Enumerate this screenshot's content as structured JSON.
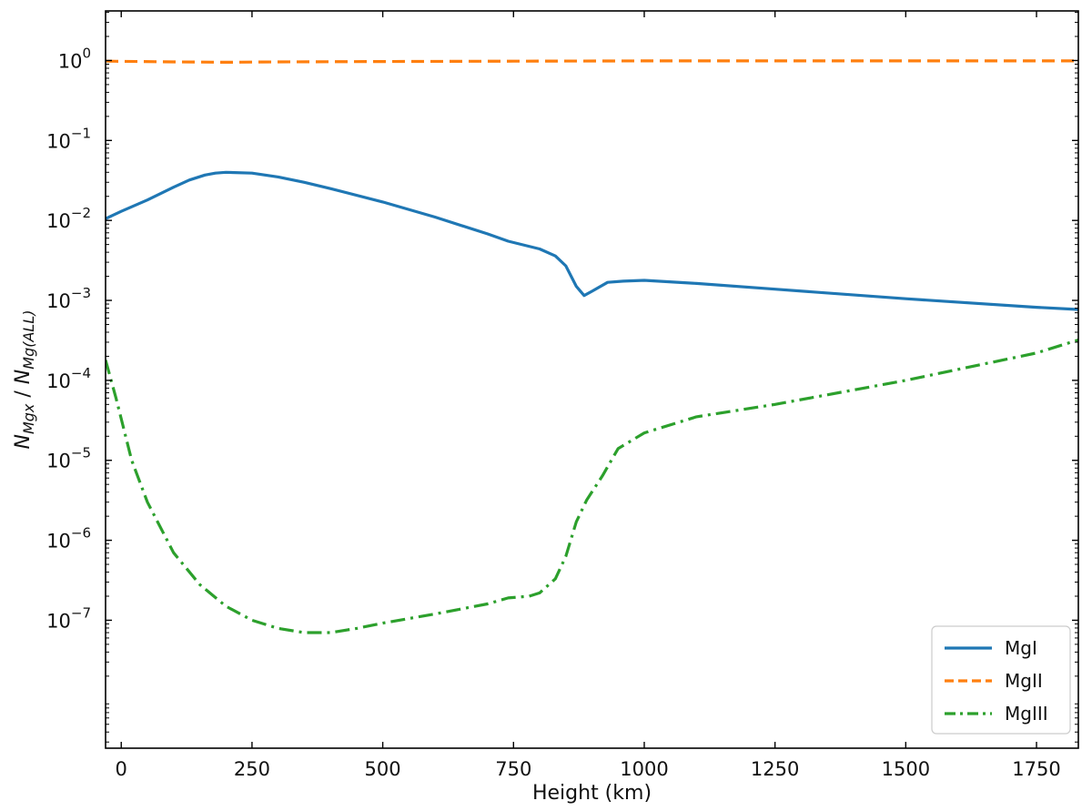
{
  "chart_data": {
    "type": "line",
    "xlabel": "Height (km)",
    "ylabel": {
      "base": "N",
      "num_sub": "Mgx",
      "sep": " / ",
      "den_sub": "Mg(ALL)"
    },
    "xlim": [
      -30,
      1830
    ],
    "ylim_log10": [
      -8.6,
      0.62
    ],
    "yscale": "log",
    "xticks": [
      0,
      250,
      500,
      750,
      1000,
      1250,
      1500,
      1750
    ],
    "xtick_labels": [
      "0",
      "250",
      "500",
      "750",
      "1000",
      "1250",
      "1500",
      "1750"
    ],
    "yticks_exp": [
      0,
      -1,
      -2,
      -3,
      -4,
      -5,
      -6,
      -7
    ],
    "ytick_labels": [
      {
        "base": "10",
        "exp": "0"
      },
      {
        "base": "10",
        "exp": "−1"
      },
      {
        "base": "10",
        "exp": "−2"
      },
      {
        "base": "10",
        "exp": "−3"
      },
      {
        "base": "10",
        "exp": "−4"
      },
      {
        "base": "10",
        "exp": "−5"
      },
      {
        "base": "10",
        "exp": "−6"
      },
      {
        "base": "10",
        "exp": "−7"
      }
    ],
    "legend_position": "lower-right",
    "series": [
      {
        "name": "MgI",
        "color": "#1f77b4",
        "style": "solid",
        "x": [
          -30,
          0,
          50,
          100,
          130,
          160,
          180,
          200,
          250,
          300,
          350,
          400,
          500,
          600,
          700,
          740,
          800,
          830,
          850,
          870,
          885,
          900,
          930,
          960,
          1000,
          1100,
          1250,
          1500,
          1750,
          1830
        ],
        "y": [
          0.0105,
          0.013,
          0.018,
          0.026,
          0.032,
          0.037,
          0.039,
          0.04,
          0.039,
          0.035,
          0.03,
          0.025,
          0.017,
          0.011,
          0.0068,
          0.0055,
          0.0044,
          0.0036,
          0.0027,
          0.0015,
          0.00115,
          0.0013,
          0.00168,
          0.00174,
          0.00178,
          0.00163,
          0.00138,
          0.00105,
          0.00082,
          0.00077
        ]
      },
      {
        "name": "MgII",
        "color": "#ff7f0e",
        "style": "dashed",
        "x": [
          -30,
          100,
          200,
          300,
          500,
          750,
          1000,
          1250,
          1500,
          1830
        ],
        "y": [
          0.98,
          0.96,
          0.95,
          0.96,
          0.97,
          0.98,
          0.99,
          0.99,
          0.99,
          0.99
        ]
      },
      {
        "name": "MgIII",
        "color": "#2ca02c",
        "style": "dashdot",
        "x": [
          -30,
          -10,
          20,
          50,
          100,
          150,
          200,
          250,
          300,
          350,
          400,
          450,
          500,
          600,
          700,
          740,
          780,
          800,
          830,
          850,
          870,
          890,
          920,
          950,
          1000,
          1100,
          1250,
          1500,
          1750,
          1830
        ],
        "y": [
          0.00018,
          6e-05,
          1e-05,
          3e-06,
          7e-07,
          2.8e-07,
          1.5e-07,
          1e-07,
          7.9e-08,
          7e-08,
          7e-08,
          7.9e-08,
          9.2e-08,
          1.2e-07,
          1.6e-07,
          1.9e-07,
          2e-07,
          2.2e-07,
          3.3e-07,
          6.3e-07,
          1.7e-06,
          3.2e-06,
          6.4e-06,
          1.4e-05,
          2.2e-05,
          3.5e-05,
          5e-05,
          0.0001,
          0.00022,
          0.00032
        ]
      }
    ]
  }
}
